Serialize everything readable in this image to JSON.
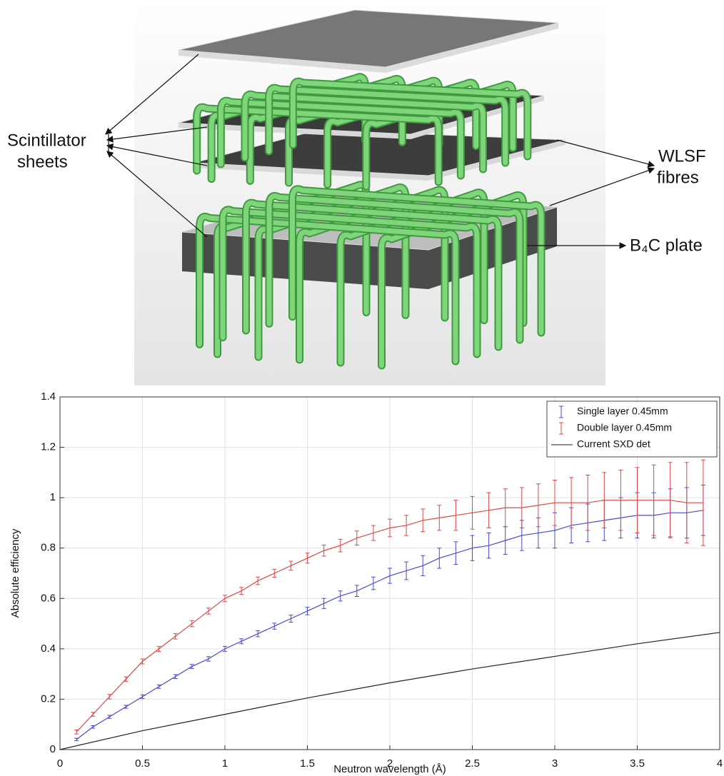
{
  "diagram": {
    "labels": {
      "scintillator": [
        "Scintillator",
        "sheets"
      ],
      "wlsf": [
        "WLSF",
        "fibres"
      ],
      "b4c": "B₄C plate"
    }
  },
  "chart_data": {
    "type": "errorbar",
    "xlabel": "Neutron wavelength (Å)",
    "ylabel": "Absolute efficiency",
    "xlim": [
      0,
      4
    ],
    "ylim": [
      0,
      1.4
    ],
    "xticks": [
      0,
      0.5,
      1,
      1.5,
      2,
      2.5,
      3,
      3.5,
      4
    ],
    "yticks": [
      0,
      0.2,
      0.4,
      0.6,
      0.8,
      1,
      1.2,
      1.4
    ],
    "grid": true,
    "legend": "top-right",
    "x": [
      0.1,
      0.2,
      0.3,
      0.4,
      0.5,
      0.6,
      0.7,
      0.8,
      0.9,
      1.0,
      1.1,
      1.2,
      1.3,
      1.4,
      1.5,
      1.6,
      1.7,
      1.8,
      1.9,
      2.0,
      2.1,
      2.2,
      2.3,
      2.4,
      2.5,
      2.6,
      2.7,
      2.8,
      2.9,
      3.0,
      3.1,
      3.2,
      3.3,
      3.4,
      3.5,
      3.6,
      3.7,
      3.8,
      3.9
    ],
    "series": [
      {
        "name": "Single layer  0.45mm",
        "color": "#4a4ad0",
        "values": [
          0.04,
          0.09,
          0.13,
          0.17,
          0.21,
          0.25,
          0.29,
          0.33,
          0.36,
          0.4,
          0.43,
          0.46,
          0.49,
          0.52,
          0.55,
          0.58,
          0.61,
          0.63,
          0.66,
          0.69,
          0.71,
          0.73,
          0.76,
          0.78,
          0.8,
          0.81,
          0.83,
          0.85,
          0.86,
          0.87,
          0.89,
          0.9,
          0.91,
          0.92,
          0.93,
          0.93,
          0.94,
          0.94,
          0.95
        ],
        "errors": [
          0.005,
          0.005,
          0.006,
          0.006,
          0.007,
          0.007,
          0.008,
          0.008,
          0.009,
          0.01,
          0.01,
          0.012,
          0.012,
          0.014,
          0.015,
          0.02,
          0.02,
          0.022,
          0.025,
          0.03,
          0.035,
          0.04,
          0.04,
          0.045,
          0.05,
          0.05,
          0.055,
          0.06,
          0.06,
          0.07,
          0.07,
          0.075,
          0.08,
          0.08,
          0.09,
          0.09,
          0.095,
          0.1,
          0.1
        ]
      },
      {
        "name": "Double layer 0.45mm",
        "color": "#e04848",
        "values": [
          0.07,
          0.14,
          0.21,
          0.28,
          0.35,
          0.4,
          0.45,
          0.5,
          0.55,
          0.6,
          0.63,
          0.67,
          0.7,
          0.73,
          0.76,
          0.79,
          0.81,
          0.84,
          0.86,
          0.88,
          0.89,
          0.91,
          0.92,
          0.93,
          0.94,
          0.95,
          0.96,
          0.96,
          0.97,
          0.98,
          0.98,
          0.98,
          0.99,
          0.99,
          0.99,
          0.99,
          0.99,
          0.98,
          0.98
        ],
        "errors": [
          0.008,
          0.008,
          0.009,
          0.009,
          0.01,
          0.01,
          0.011,
          0.012,
          0.012,
          0.013,
          0.014,
          0.015,
          0.016,
          0.018,
          0.02,
          0.022,
          0.025,
          0.028,
          0.03,
          0.035,
          0.04,
          0.045,
          0.05,
          0.06,
          0.065,
          0.07,
          0.075,
          0.08,
          0.085,
          0.09,
          0.1,
          0.11,
          0.11,
          0.12,
          0.13,
          0.14,
          0.15,
          0.16,
          0.17
        ]
      },
      {
        "name": "Current SXD det",
        "color": "#222222",
        "x": [
          0,
          0.5,
          1,
          1.5,
          2,
          2.5,
          3,
          3.5,
          4
        ],
        "values": [
          0,
          0.075,
          0.14,
          0.205,
          0.265,
          0.32,
          0.37,
          0.42,
          0.465
        ]
      }
    ]
  }
}
